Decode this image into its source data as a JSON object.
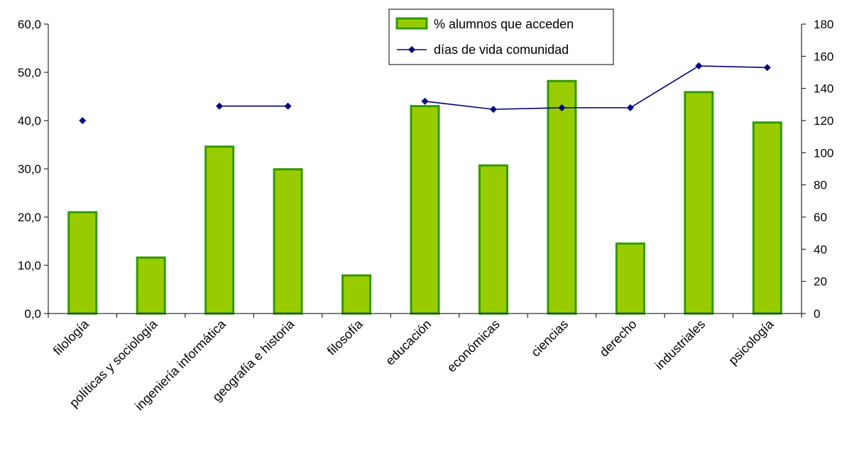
{
  "chart_data": {
    "type": "bar",
    "categories": [
      "filología",
      "políticas y sociología",
      "ingeniería informática",
      "geografía e historia",
      "filosofía",
      "educación",
      "económicas",
      "ciencias",
      "derecho",
      "industriales",
      "psicología"
    ],
    "series": [
      {
        "name": "% alumnos que acceden",
        "type": "bar",
        "axis": "left",
        "color": "#99CC00",
        "edge_color": "#339900",
        "values": [
          21.0,
          11.6,
          34.6,
          29.9,
          7.9,
          43.0,
          30.7,
          48.2,
          14.5,
          45.9,
          39.6
        ]
      },
      {
        "name": "días de vida comunidad",
        "type": "line",
        "axis": "right",
        "color": "#000080",
        "marker": "diamond",
        "values": [
          120,
          null,
          129,
          129,
          null,
          132,
          127,
          128,
          128,
          154,
          153
        ]
      }
    ],
    "y_left": {
      "range": [
        0,
        60
      ],
      "ticks": [
        "0,0",
        "10,0",
        "20,0",
        "30,0",
        "40,0",
        "50,0",
        "60,0"
      ]
    },
    "y_right": {
      "range": [
        0,
        180
      ],
      "ticks": [
        "0",
        "20",
        "40",
        "60",
        "80",
        "100",
        "120",
        "140",
        "160",
        "180"
      ]
    },
    "legend_position": "top-center",
    "grid": false
  }
}
